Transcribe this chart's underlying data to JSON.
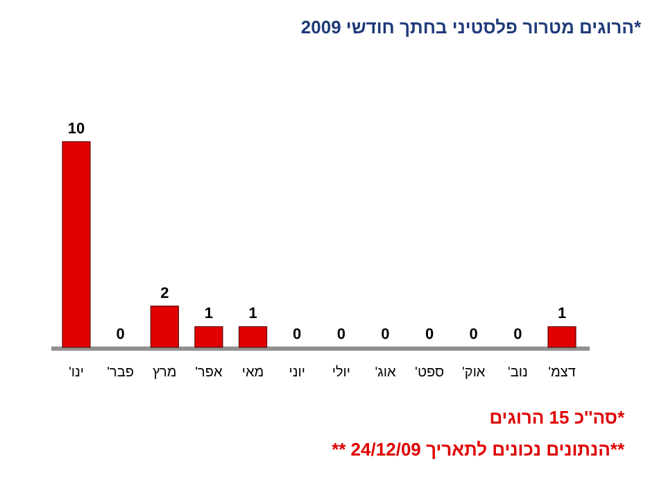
{
  "chart_data": {
    "type": "bar",
    "title": "*הרוגים מטרור פלסטיני בחתך חודשי 2009",
    "categories": [
      "ינו'",
      "פבר'",
      "מרץ",
      "אפר'",
      "מאי",
      "יוני",
      "יולי",
      "אוג'",
      "ספט'",
      "אוק'",
      "נוב'",
      "דצמ'"
    ],
    "values": [
      10,
      0,
      2,
      1,
      1,
      0,
      0,
      0,
      0,
      0,
      0,
      1
    ],
    "color": "#e00000",
    "data_labels": true,
    "annotations": [
      "*סה''כ 15 הרוגים",
      "**הנתונים נכונים לתאריך 24/12/09 **"
    ]
  }
}
